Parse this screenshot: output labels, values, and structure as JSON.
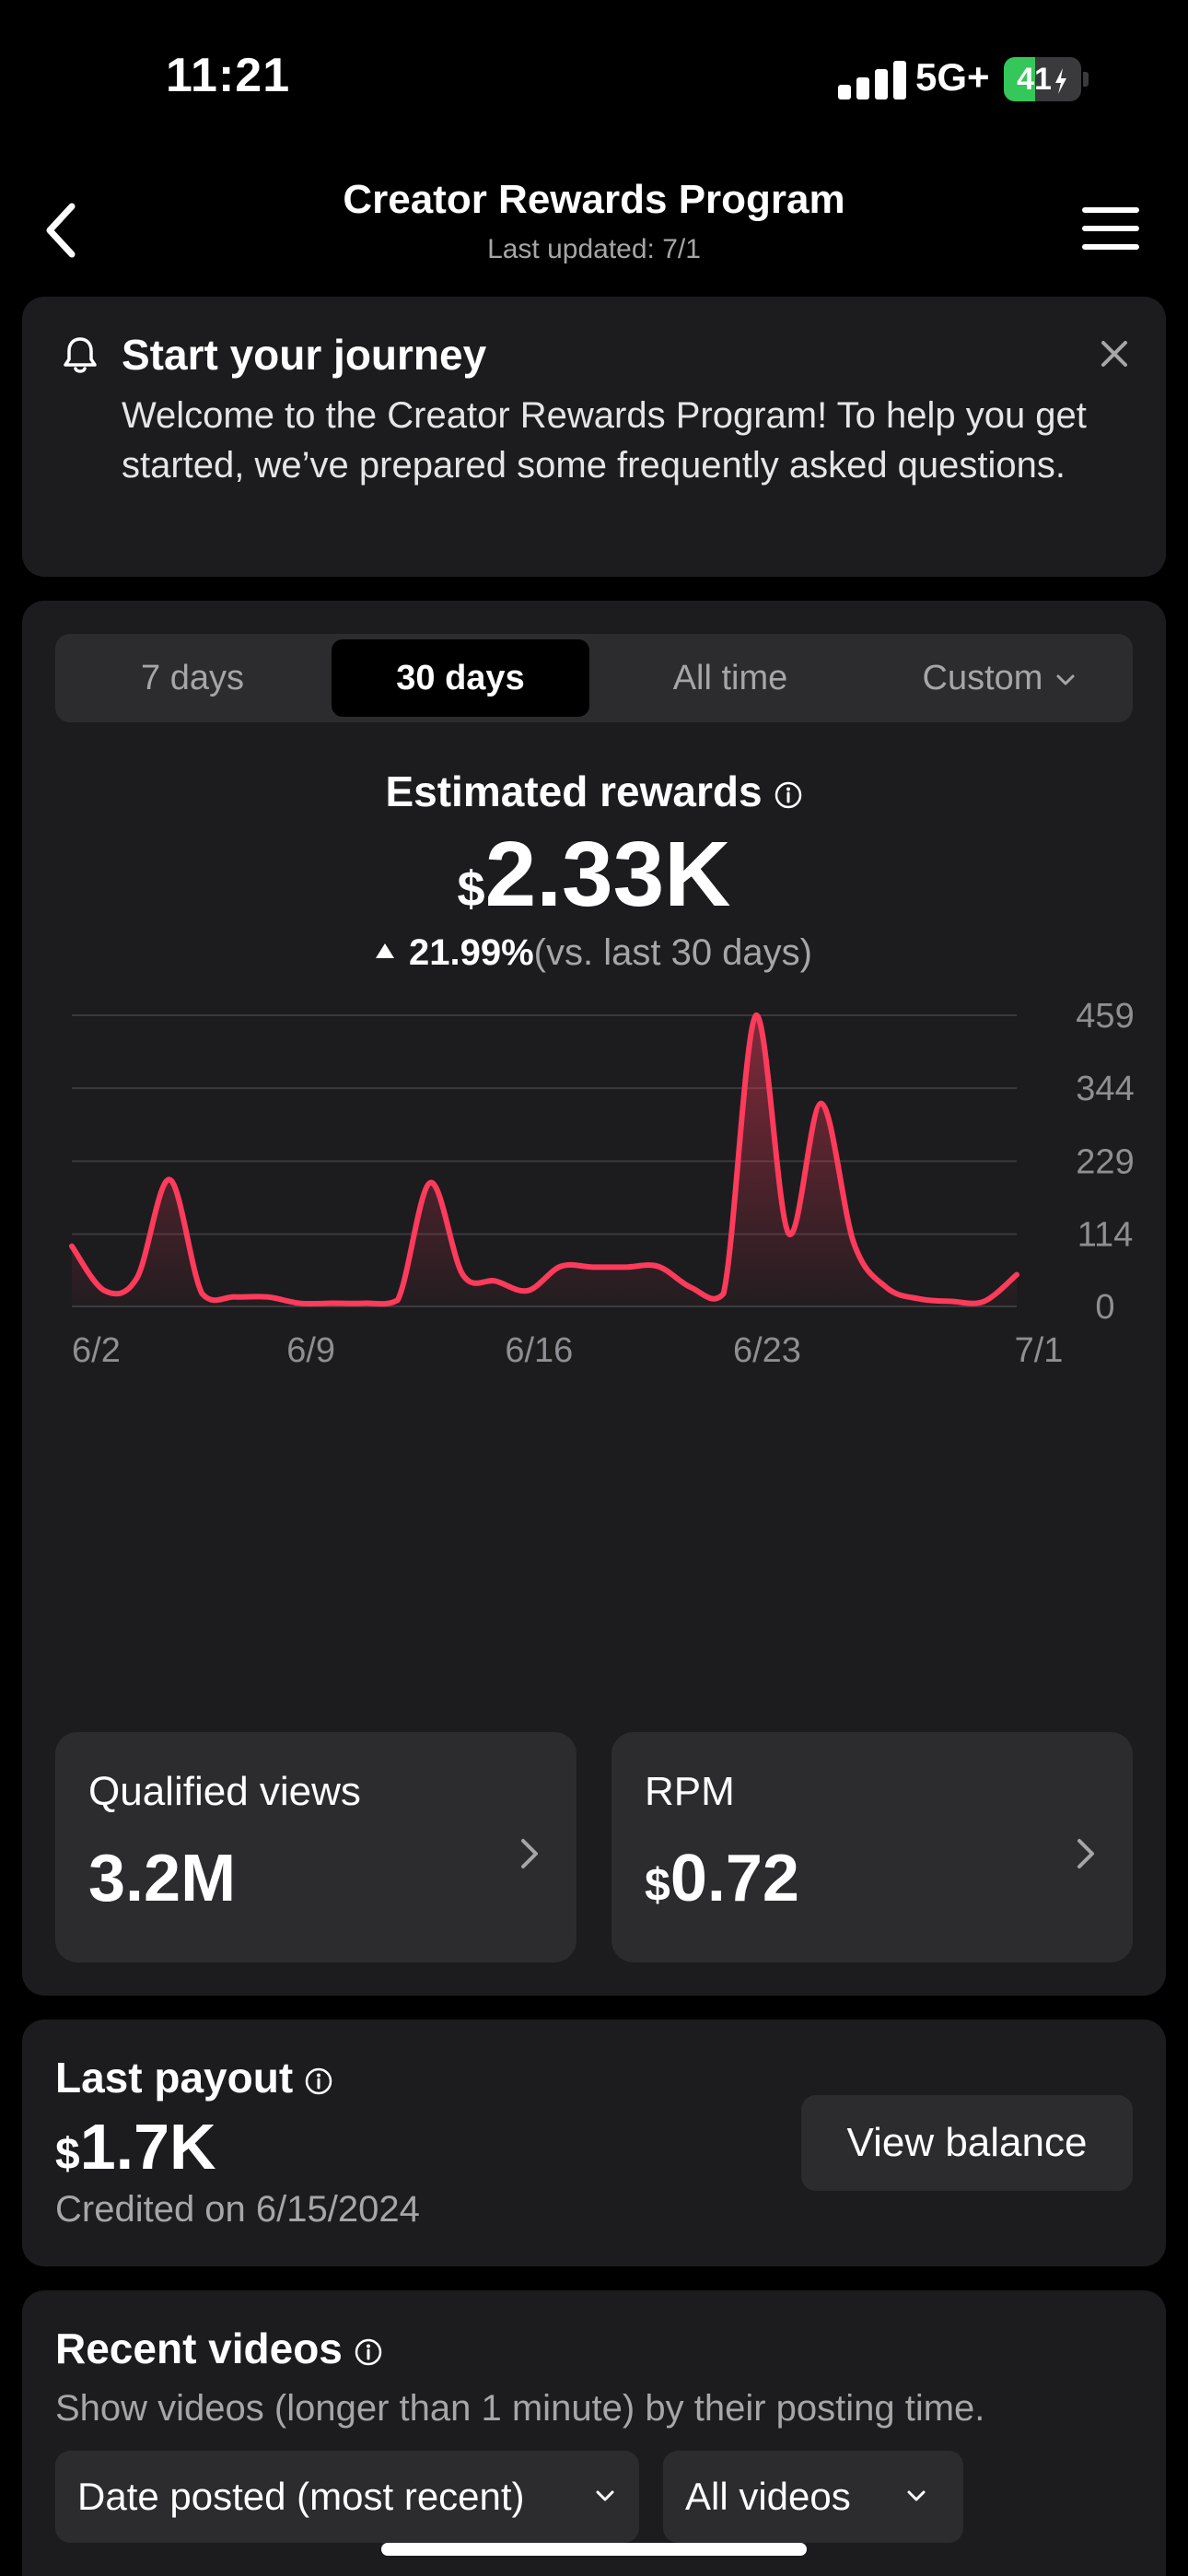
{
  "status_bar": {
    "time": "11:21",
    "network": "5G+",
    "battery_level": "41",
    "battery_fraction": 0.41,
    "battery_color": "#34c759"
  },
  "header": {
    "title": "Creator Rewards Program",
    "subtitle": "Last updated: 7/1",
    "back_icon": "chevron-left-icon",
    "menu_icon": "hamburger-menu-icon"
  },
  "banner": {
    "icon": "bell-icon",
    "title": "Start your journey",
    "body": "Welcome to the Creator Rewards Program! To help you get started, we’ve prepared some frequently asked questions.",
    "close_icon": "close-icon"
  },
  "range_tabs": {
    "items": [
      {
        "label": "7 days",
        "active": false
      },
      {
        "label": "30 days",
        "active": true
      },
      {
        "label": "All time",
        "active": false
      },
      {
        "label": "Custom",
        "active": false,
        "has_dropdown": true
      }
    ]
  },
  "estimated": {
    "label": "Estimated rewards",
    "currency": "$",
    "value": "2.33K",
    "change": "21.99%",
    "comparison": "(vs. last 30 days)"
  },
  "chart_data": {
    "type": "area",
    "title": "",
    "xlabel": "",
    "ylabel": "",
    "x_ticks": [
      "6/2",
      "6/9",
      "6/16",
      "6/23",
      "7/1"
    ],
    "y_ticks": [
      0,
      114,
      229,
      344,
      459
    ],
    "ylim": [
      0,
      459
    ],
    "grid": true,
    "line_color": "#ff3b5c",
    "series": [
      {
        "values": [
          95,
          25,
          45,
          200,
          20,
          15,
          15,
          5,
          5,
          5,
          10,
          195,
          50,
          40,
          25,
          63,
          62,
          62,
          63,
          30,
          20,
          459,
          115,
          320,
          100,
          30,
          12,
          8,
          8,
          50
        ]
      }
    ]
  },
  "metrics": [
    {
      "label": "Qualified views",
      "currency": "",
      "value": "3.2M"
    },
    {
      "label": "RPM",
      "currency": "$",
      "value": "0.72"
    }
  ],
  "payout": {
    "label": "Last payout",
    "currency": "$",
    "value": "1.7K",
    "credited": "Credited on 6/15/2024",
    "button_label": "View balance"
  },
  "recent_videos": {
    "label": "Recent videos",
    "description": "Show videos (longer than 1 minute) by their posting time.",
    "sort_dropdown": "Date posted (most recent)",
    "filter_dropdown": "All videos"
  }
}
